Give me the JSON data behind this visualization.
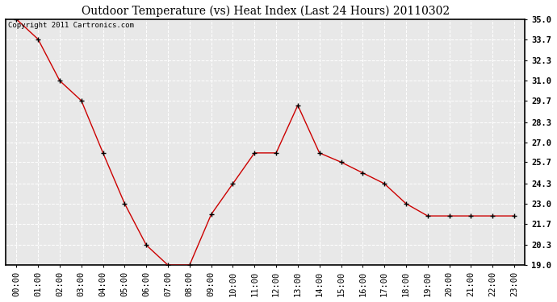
{
  "title": "Outdoor Temperature (vs) Heat Index (Last 24 Hours) 20110302",
  "copyright_text": "Copyright 2011 Cartronics.com",
  "x_labels": [
    "00:00",
    "01:00",
    "02:00",
    "03:00",
    "04:00",
    "05:00",
    "06:00",
    "07:00",
    "08:00",
    "09:00",
    "10:00",
    "11:00",
    "12:00",
    "13:00",
    "14:00",
    "15:00",
    "16:00",
    "17:00",
    "18:00",
    "19:00",
    "20:00",
    "21:00",
    "22:00",
    "23:00"
  ],
  "y_values": [
    35.0,
    33.7,
    31.0,
    29.7,
    26.3,
    23.0,
    20.3,
    19.0,
    19.0,
    22.3,
    24.3,
    26.3,
    26.3,
    29.4,
    26.3,
    25.7,
    25.0,
    24.3,
    23.0,
    22.2,
    22.2,
    22.2,
    22.2,
    22.2
  ],
  "y_ticks": [
    19.0,
    20.3,
    21.7,
    23.0,
    24.3,
    25.7,
    27.0,
    28.3,
    29.7,
    31.0,
    32.3,
    33.7,
    35.0
  ],
  "y_min": 19.0,
  "y_max": 35.0,
  "line_color": "#cc0000",
  "marker": "+",
  "marker_size": 5,
  "marker_color": "#000000",
  "bg_color": "#ffffff",
  "plot_bg_color": "#e8e8e8",
  "grid_color": "#ffffff",
  "title_fontsize": 10,
  "tick_fontsize": 7.5,
  "copyright_fontsize": 6.5
}
